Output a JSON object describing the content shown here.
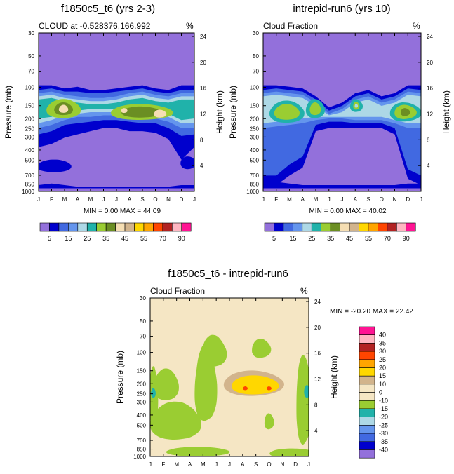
{
  "chart_data": [
    {
      "type": "contour",
      "title": "f1850c5_t6 (yrs 2-3)",
      "subtitle_left": "CLOUD at -0.528376,166.992",
      "subtitle_right": "%",
      "xlabel": "",
      "ylabel": "Pressure (mb)",
      "ylabel_right": "Height (km)",
      "x_ticks": [
        "J",
        "F",
        "M",
        "A",
        "M",
        "J",
        "J",
        "A",
        "S",
        "O",
        "N",
        "D",
        "J"
      ],
      "y_ticks": [
        "30",
        "50",
        "70",
        "100",
        "150",
        "200",
        "250",
        "300",
        "400",
        "500",
        "700",
        "850",
        "1000"
      ],
      "y_ticks_right": [
        "24",
        "20",
        "16",
        "12",
        "8",
        "4"
      ],
      "stats": "MIN =  0.00 MAX =  44.09",
      "levels": [
        5,
        10,
        15,
        20,
        25,
        30,
        35,
        40,
        45,
        50,
        55,
        60,
        70,
        80,
        90
      ],
      "colorbar_labels": [
        "5",
        "15",
        "25",
        "35",
        "45",
        "55",
        "70",
        "90"
      ],
      "contour_pattern": "cloud_a"
    },
    {
      "type": "contour",
      "title": "intrepid-run6 (yrs 10)",
      "subtitle_left": "Cloud Fraction",
      "subtitle_right": "%",
      "xlabel": "",
      "ylabel": "Pressure (mb)",
      "ylabel_right": "Height (km)",
      "x_ticks": [
        "J",
        "F",
        "M",
        "A",
        "M",
        "J",
        "J",
        "A",
        "S",
        "O",
        "N",
        "D",
        "J"
      ],
      "y_ticks": [
        "30",
        "50",
        "70",
        "100",
        "150",
        "200",
        "250",
        "300",
        "400",
        "500",
        "700",
        "850",
        "1000"
      ],
      "y_ticks_right": [
        "24",
        "20",
        "16",
        "12",
        "8",
        "4"
      ],
      "stats": "MIN =  0.00 MAX =  40.02",
      "levels": [
        5,
        10,
        15,
        20,
        25,
        30,
        35,
        40,
        45,
        50,
        55,
        60,
        70,
        80,
        90
      ],
      "colorbar_labels": [
        "5",
        "15",
        "25",
        "35",
        "45",
        "55",
        "70",
        "90"
      ],
      "contour_pattern": "cloud_b"
    },
    {
      "type": "contour",
      "title": "f1850c5_t6 - intrepid-run6",
      "subtitle_left": "Cloud Fraction",
      "subtitle_right": "%",
      "xlabel": "",
      "ylabel": "Pressure (mb)",
      "ylabel_right": "Height (km)",
      "x_ticks": [
        "J",
        "F",
        "M",
        "A",
        "M",
        "J",
        "J",
        "A",
        "S",
        "O",
        "N",
        "D",
        "J"
      ],
      "y_ticks": [
        "30",
        "50",
        "70",
        "100",
        "150",
        "200",
        "250",
        "300",
        "400",
        "500",
        "700",
        "850",
        "1000"
      ],
      "y_ticks_right": [
        "24",
        "20",
        "16",
        "12",
        "8",
        "4"
      ],
      "stats": "MIN = -20.20 MAX =  22.42",
      "levels": [
        -40,
        -35,
        -30,
        -25,
        -20,
        -15,
        -10,
        0,
        10,
        15,
        20,
        25,
        30,
        35,
        40
      ],
      "colorbar_labels": [
        "40",
        "35",
        "30",
        "25",
        "20",
        "15",
        "10",
        "0",
        "-10",
        "-15",
        "-20",
        "-25",
        "-30",
        "-35",
        "-40"
      ],
      "contour_pattern": "diff"
    }
  ],
  "colors": {
    "seq": [
      "#9370db",
      "#0000cd",
      "#4169e1",
      "#6495ed",
      "#add8e6",
      "#20b2aa",
      "#9acd32",
      "#6b8e23",
      "#f5deb3",
      "#d2b48c",
      "#ffd700",
      "#ffa500",
      "#ff4500",
      "#b22222",
      "#ffb6c1",
      "#ff1493"
    ],
    "div": [
      "#9370db",
      "#0000cd",
      "#4169e1",
      "#6495ed",
      "#add8e6",
      "#20b2aa",
      "#9acd32",
      "#f5e6c4",
      "#f5e6c4",
      "#d2b48c",
      "#ffd700",
      "#ffa500",
      "#ff4500",
      "#b22222",
      "#ffb6c1",
      "#ff1493"
    ]
  }
}
